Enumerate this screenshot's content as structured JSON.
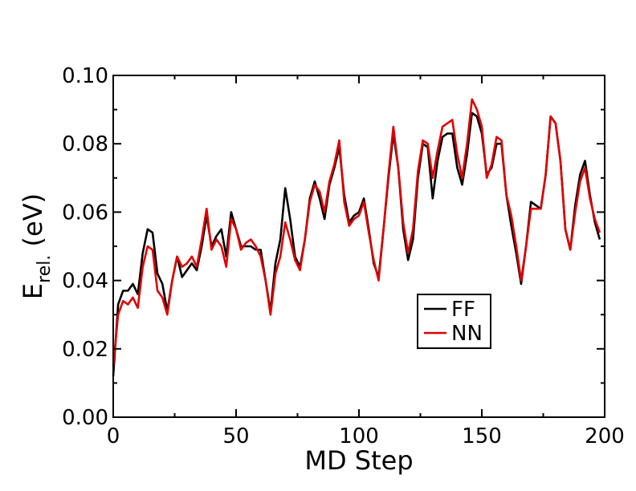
{
  "chart_data": {
    "type": "line",
    "xlabel": "MD Step",
    "ylabel": [
      "E",
      "rel.",
      " (eV)"
    ],
    "x": [
      0,
      2,
      4,
      6,
      8,
      10,
      12,
      14,
      16,
      18,
      20,
      22,
      24,
      26,
      28,
      30,
      32,
      34,
      36,
      38,
      40,
      42,
      44,
      46,
      48,
      50,
      52,
      54,
      56,
      58,
      60,
      62,
      64,
      66,
      68,
      70,
      72,
      74,
      76,
      78,
      80,
      82,
      84,
      86,
      88,
      90,
      92,
      94,
      96,
      98,
      100,
      102,
      104,
      106,
      108,
      110,
      112,
      114,
      116,
      118,
      120,
      122,
      124,
      126,
      128,
      130,
      132,
      134,
      136,
      138,
      140,
      142,
      144,
      146,
      148,
      150,
      152,
      154,
      156,
      158,
      160,
      162,
      164,
      166,
      168,
      170,
      172,
      174,
      176,
      178,
      180,
      182,
      184,
      186,
      188,
      190,
      192,
      194,
      196,
      198
    ],
    "series": [
      {
        "name": "FF",
        "color": "#000000",
        "values": [
          0.012,
          0.033,
          0.037,
          0.037,
          0.039,
          0.036,
          0.048,
          0.055,
          0.054,
          0.042,
          0.039,
          0.031,
          0.04,
          0.047,
          0.041,
          0.043,
          0.045,
          0.043,
          0.05,
          0.059,
          0.05,
          0.053,
          0.055,
          0.047,
          0.06,
          0.055,
          0.05,
          0.05,
          0.05,
          0.049,
          0.049,
          0.04,
          0.031,
          0.045,
          0.052,
          0.067,
          0.058,
          0.047,
          0.044,
          0.052,
          0.064,
          0.069,
          0.064,
          0.058,
          0.068,
          0.073,
          0.079,
          0.065,
          0.057,
          0.059,
          0.06,
          0.064,
          0.055,
          0.045,
          0.041,
          0.055,
          0.07,
          0.083,
          0.073,
          0.055,
          0.046,
          0.052,
          0.07,
          0.08,
          0.079,
          0.064,
          0.075,
          0.082,
          0.083,
          0.083,
          0.073,
          0.068,
          0.077,
          0.089,
          0.088,
          0.083,
          0.071,
          0.073,
          0.08,
          0.08,
          0.065,
          0.056,
          0.048,
          0.039,
          0.05,
          0.063,
          0.062,
          0.061,
          0.071,
          0.088,
          0.086,
          0.075,
          0.055,
          0.049,
          0.062,
          0.071,
          0.075,
          0.065,
          0.057,
          0.052
        ]
      },
      {
        "name": "NN",
        "color": "#e00000",
        "values": [
          0.015,
          0.03,
          0.034,
          0.033,
          0.035,
          0.032,
          0.044,
          0.05,
          0.049,
          0.037,
          0.035,
          0.03,
          0.04,
          0.047,
          0.044,
          0.045,
          0.047,
          0.044,
          0.052,
          0.061,
          0.049,
          0.052,
          0.05,
          0.044,
          0.058,
          0.055,
          0.049,
          0.051,
          0.052,
          0.05,
          0.047,
          0.04,
          0.03,
          0.042,
          0.047,
          0.057,
          0.052,
          0.046,
          0.043,
          0.052,
          0.063,
          0.068,
          0.066,
          0.06,
          0.069,
          0.074,
          0.081,
          0.063,
          0.056,
          0.058,
          0.059,
          0.063,
          0.054,
          0.046,
          0.04,
          0.055,
          0.071,
          0.085,
          0.073,
          0.057,
          0.048,
          0.055,
          0.072,
          0.081,
          0.08,
          0.07,
          0.078,
          0.085,
          0.086,
          0.087,
          0.077,
          0.07,
          0.08,
          0.093,
          0.09,
          0.085,
          0.07,
          0.074,
          0.082,
          0.081,
          0.065,
          0.059,
          0.05,
          0.04,
          0.05,
          0.061,
          0.061,
          0.061,
          0.071,
          0.088,
          0.086,
          0.075,
          0.055,
          0.049,
          0.06,
          0.069,
          0.073,
          0.064,
          0.058,
          0.054
        ]
      }
    ],
    "xlim": [
      0,
      200
    ],
    "xticks": [
      0,
      50,
      100,
      150,
      200
    ],
    "xminorticks": [
      25,
      75,
      125,
      175
    ],
    "ylim": [
      0,
      0.1
    ],
    "yticks": [
      {
        "value": 0,
        "label": "0.00"
      },
      0.02,
      0.04,
      0.06,
      0.08,
      {
        "value": 0.1,
        "label": "0.10"
      }
    ],
    "yminorticks": [
      0.01,
      0.03,
      0.05,
      0.07,
      0.09
    ],
    "legend": "lower right",
    "grid": false
  }
}
